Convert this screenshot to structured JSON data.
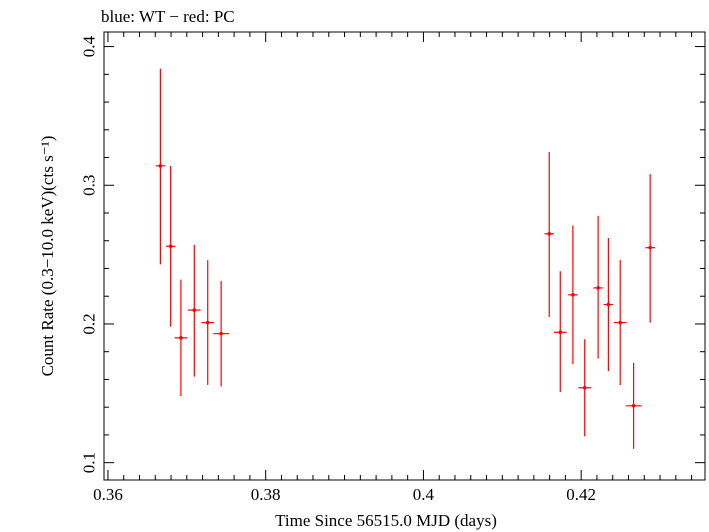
{
  "chart_data": {
    "type": "scatter",
    "title": "blue: WT − red: PC",
    "xlabel": "Time Since 56515.0 MJD (days)",
    "ylabel": "Count Rate (0.3−10.0 keV)(cts s⁻¹)",
    "xlim": [
      0.3595,
      0.4357
    ],
    "ylim": [
      0.0875,
      0.4105
    ],
    "x_ticks": [
      0.36,
      0.38,
      0.4,
      0.42
    ],
    "x_tick_labels": [
      "0.36",
      "0.38",
      "0.4",
      "0.42"
    ],
    "y_ticks": [
      0.1,
      0.2,
      0.3,
      0.4
    ],
    "y_tick_labels": [
      "0.1",
      "0.2",
      "0.3",
      "0.4"
    ],
    "grid": false,
    "series": [
      {
        "color": "#ff0000",
        "points": [
          {
            "x": 0.36665,
            "y": 0.314,
            "xerr": 0.0006,
            "ylo": 0.243,
            "yhi": 0.384
          },
          {
            "x": 0.36795,
            "y": 0.256,
            "xerr": 0.0006,
            "ylo": 0.198,
            "yhi": 0.314
          },
          {
            "x": 0.36925,
            "y": 0.19,
            "xerr": 0.0008,
            "ylo": 0.148,
            "yhi": 0.232
          },
          {
            "x": 0.37095,
            "y": 0.21,
            "xerr": 0.0008,
            "ylo": 0.162,
            "yhi": 0.257
          },
          {
            "x": 0.37265,
            "y": 0.201,
            "xerr": 0.0008,
            "ylo": 0.156,
            "yhi": 0.246
          },
          {
            "x": 0.37435,
            "y": 0.193,
            "xerr": 0.001,
            "ylo": 0.155,
            "yhi": 0.231
          },
          {
            "x": 0.41595,
            "y": 0.265,
            "xerr": 0.0006,
            "ylo": 0.205,
            "yhi": 0.324
          },
          {
            "x": 0.41735,
            "y": 0.194,
            "xerr": 0.0008,
            "ylo": 0.151,
            "yhi": 0.238
          },
          {
            "x": 0.41895,
            "y": 0.221,
            "xerr": 0.0006,
            "ylo": 0.171,
            "yhi": 0.271
          },
          {
            "x": 0.42045,
            "y": 0.154,
            "xerr": 0.0008,
            "ylo": 0.119,
            "yhi": 0.189
          },
          {
            "x": 0.42215,
            "y": 0.226,
            "xerr": 0.0006,
            "ylo": 0.175,
            "yhi": 0.278
          },
          {
            "x": 0.42345,
            "y": 0.214,
            "xerr": 0.0006,
            "ylo": 0.166,
            "yhi": 0.262
          },
          {
            "x": 0.42495,
            "y": 0.201,
            "xerr": 0.0008,
            "ylo": 0.156,
            "yhi": 0.246
          },
          {
            "x": 0.42665,
            "y": 0.141,
            "xerr": 0.001,
            "ylo": 0.11,
            "yhi": 0.172
          },
          {
            "x": 0.42875,
            "y": 0.255,
            "xerr": 0.0006,
            "ylo": 0.201,
            "yhi": 0.308
          }
        ]
      }
    ]
  }
}
